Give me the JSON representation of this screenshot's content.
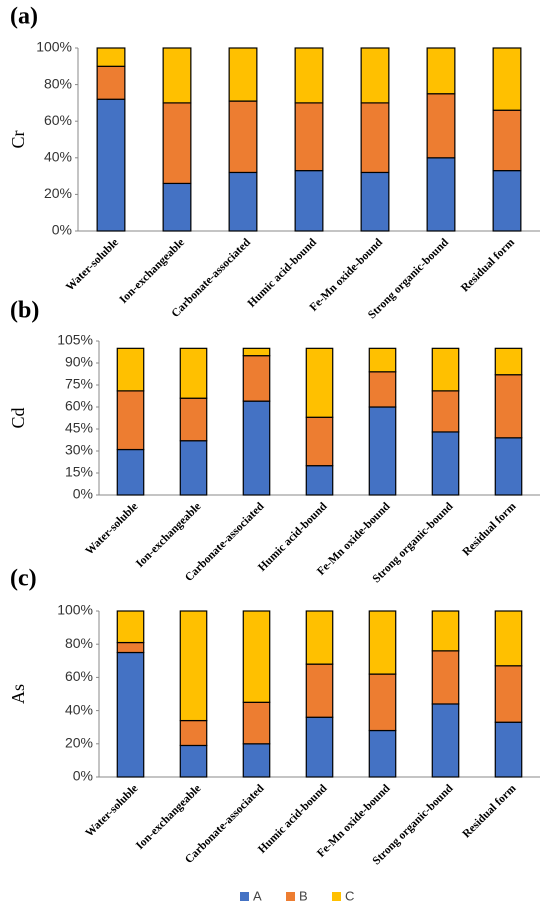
{
  "chart_data": [
    {
      "type": "stacked_bar",
      "label": "(a)",
      "y_label": "Cr",
      "categories": [
        "Water-soluble",
        "Ion-exchangeable",
        "Carbonate-associated",
        "Humic acid-bound",
        "Fe-Mn oxide-bound",
        "Strong organic-bound",
        "Residual form"
      ],
      "series": [
        {
          "name": "A",
          "color": "#4472c4",
          "values": [
            72,
            26,
            32,
            33,
            32,
            40,
            33
          ]
        },
        {
          "name": "B",
          "color": "#ed7d31",
          "values": [
            18,
            44,
            39,
            37,
            38,
            35,
            33
          ]
        },
        {
          "name": "C",
          "color": "#ffc000",
          "values": [
            10,
            30,
            29,
            30,
            30,
            25,
            34
          ]
        }
      ],
      "ylim": [
        0,
        100
      ],
      "yticks": [
        {
          "value": 0,
          "label": "0%"
        },
        {
          "value": 20,
          "label": "20%"
        },
        {
          "value": 40,
          "label": "40%"
        },
        {
          "value": 60,
          "label": "60%"
        },
        {
          "value": 80,
          "label": "80%"
        },
        {
          "value": 100,
          "label": "100%"
        }
      ]
    },
    {
      "type": "stacked_bar",
      "label": "(b)",
      "y_label": "Cd",
      "categories": [
        "Water-soluble",
        "Ion-exchangeable",
        "Carbonate-associated",
        "Humic acid-bound",
        "Fe-Mn oxide-bound",
        "Strong organic-bound",
        "Residual form"
      ],
      "series": [
        {
          "name": "A",
          "color": "#4472c4",
          "values": [
            31,
            37,
            64,
            20,
            60,
            43,
            39
          ]
        },
        {
          "name": "B",
          "color": "#ed7d31",
          "values": [
            40,
            29,
            31,
            33,
            24,
            28,
            43
          ]
        },
        {
          "name": "C",
          "color": "#ffc000",
          "values": [
            29,
            34,
            5,
            47,
            16,
            29,
            18
          ]
        }
      ],
      "ylim": [
        0,
        105
      ],
      "yticks": [
        {
          "value": 0,
          "label": "0%"
        },
        {
          "value": 15,
          "label": "15%"
        },
        {
          "value": 30,
          "label": "30%"
        },
        {
          "value": 45,
          "label": "45%"
        },
        {
          "value": 60,
          "label": "60%"
        },
        {
          "value": 75,
          "label": "75%"
        },
        {
          "value": 90,
          "label": "90%"
        },
        {
          "value": 105,
          "label": "105%"
        }
      ]
    },
    {
      "type": "stacked_bar",
      "label": "(c)",
      "y_label": "As",
      "categories": [
        "Water-soluble",
        "Ion-exchangeable",
        "Carbonate-associated",
        "Humic acid-bound",
        "Fe-Mn oxide-bound",
        "Strong organic-bound",
        "Residual form"
      ],
      "series": [
        {
          "name": "A",
          "color": "#4472c4",
          "values": [
            75,
            19,
            20,
            36,
            28,
            44,
            33
          ]
        },
        {
          "name": "B",
          "color": "#ed7d31",
          "values": [
            6,
            15,
            25,
            32,
            34,
            32,
            34
          ]
        },
        {
          "name": "C",
          "color": "#ffc000",
          "values": [
            19,
            66,
            55,
            32,
            38,
            24,
            33
          ]
        }
      ],
      "ylim": [
        0,
        100
      ],
      "yticks": [
        {
          "value": 0,
          "label": "0%"
        },
        {
          "value": 20,
          "label": "20%"
        },
        {
          "value": 40,
          "label": "40%"
        },
        {
          "value": 60,
          "label": "60%"
        },
        {
          "value": 80,
          "label": "80%"
        },
        {
          "value": 100,
          "label": "100%"
        }
      ]
    }
  ]
}
